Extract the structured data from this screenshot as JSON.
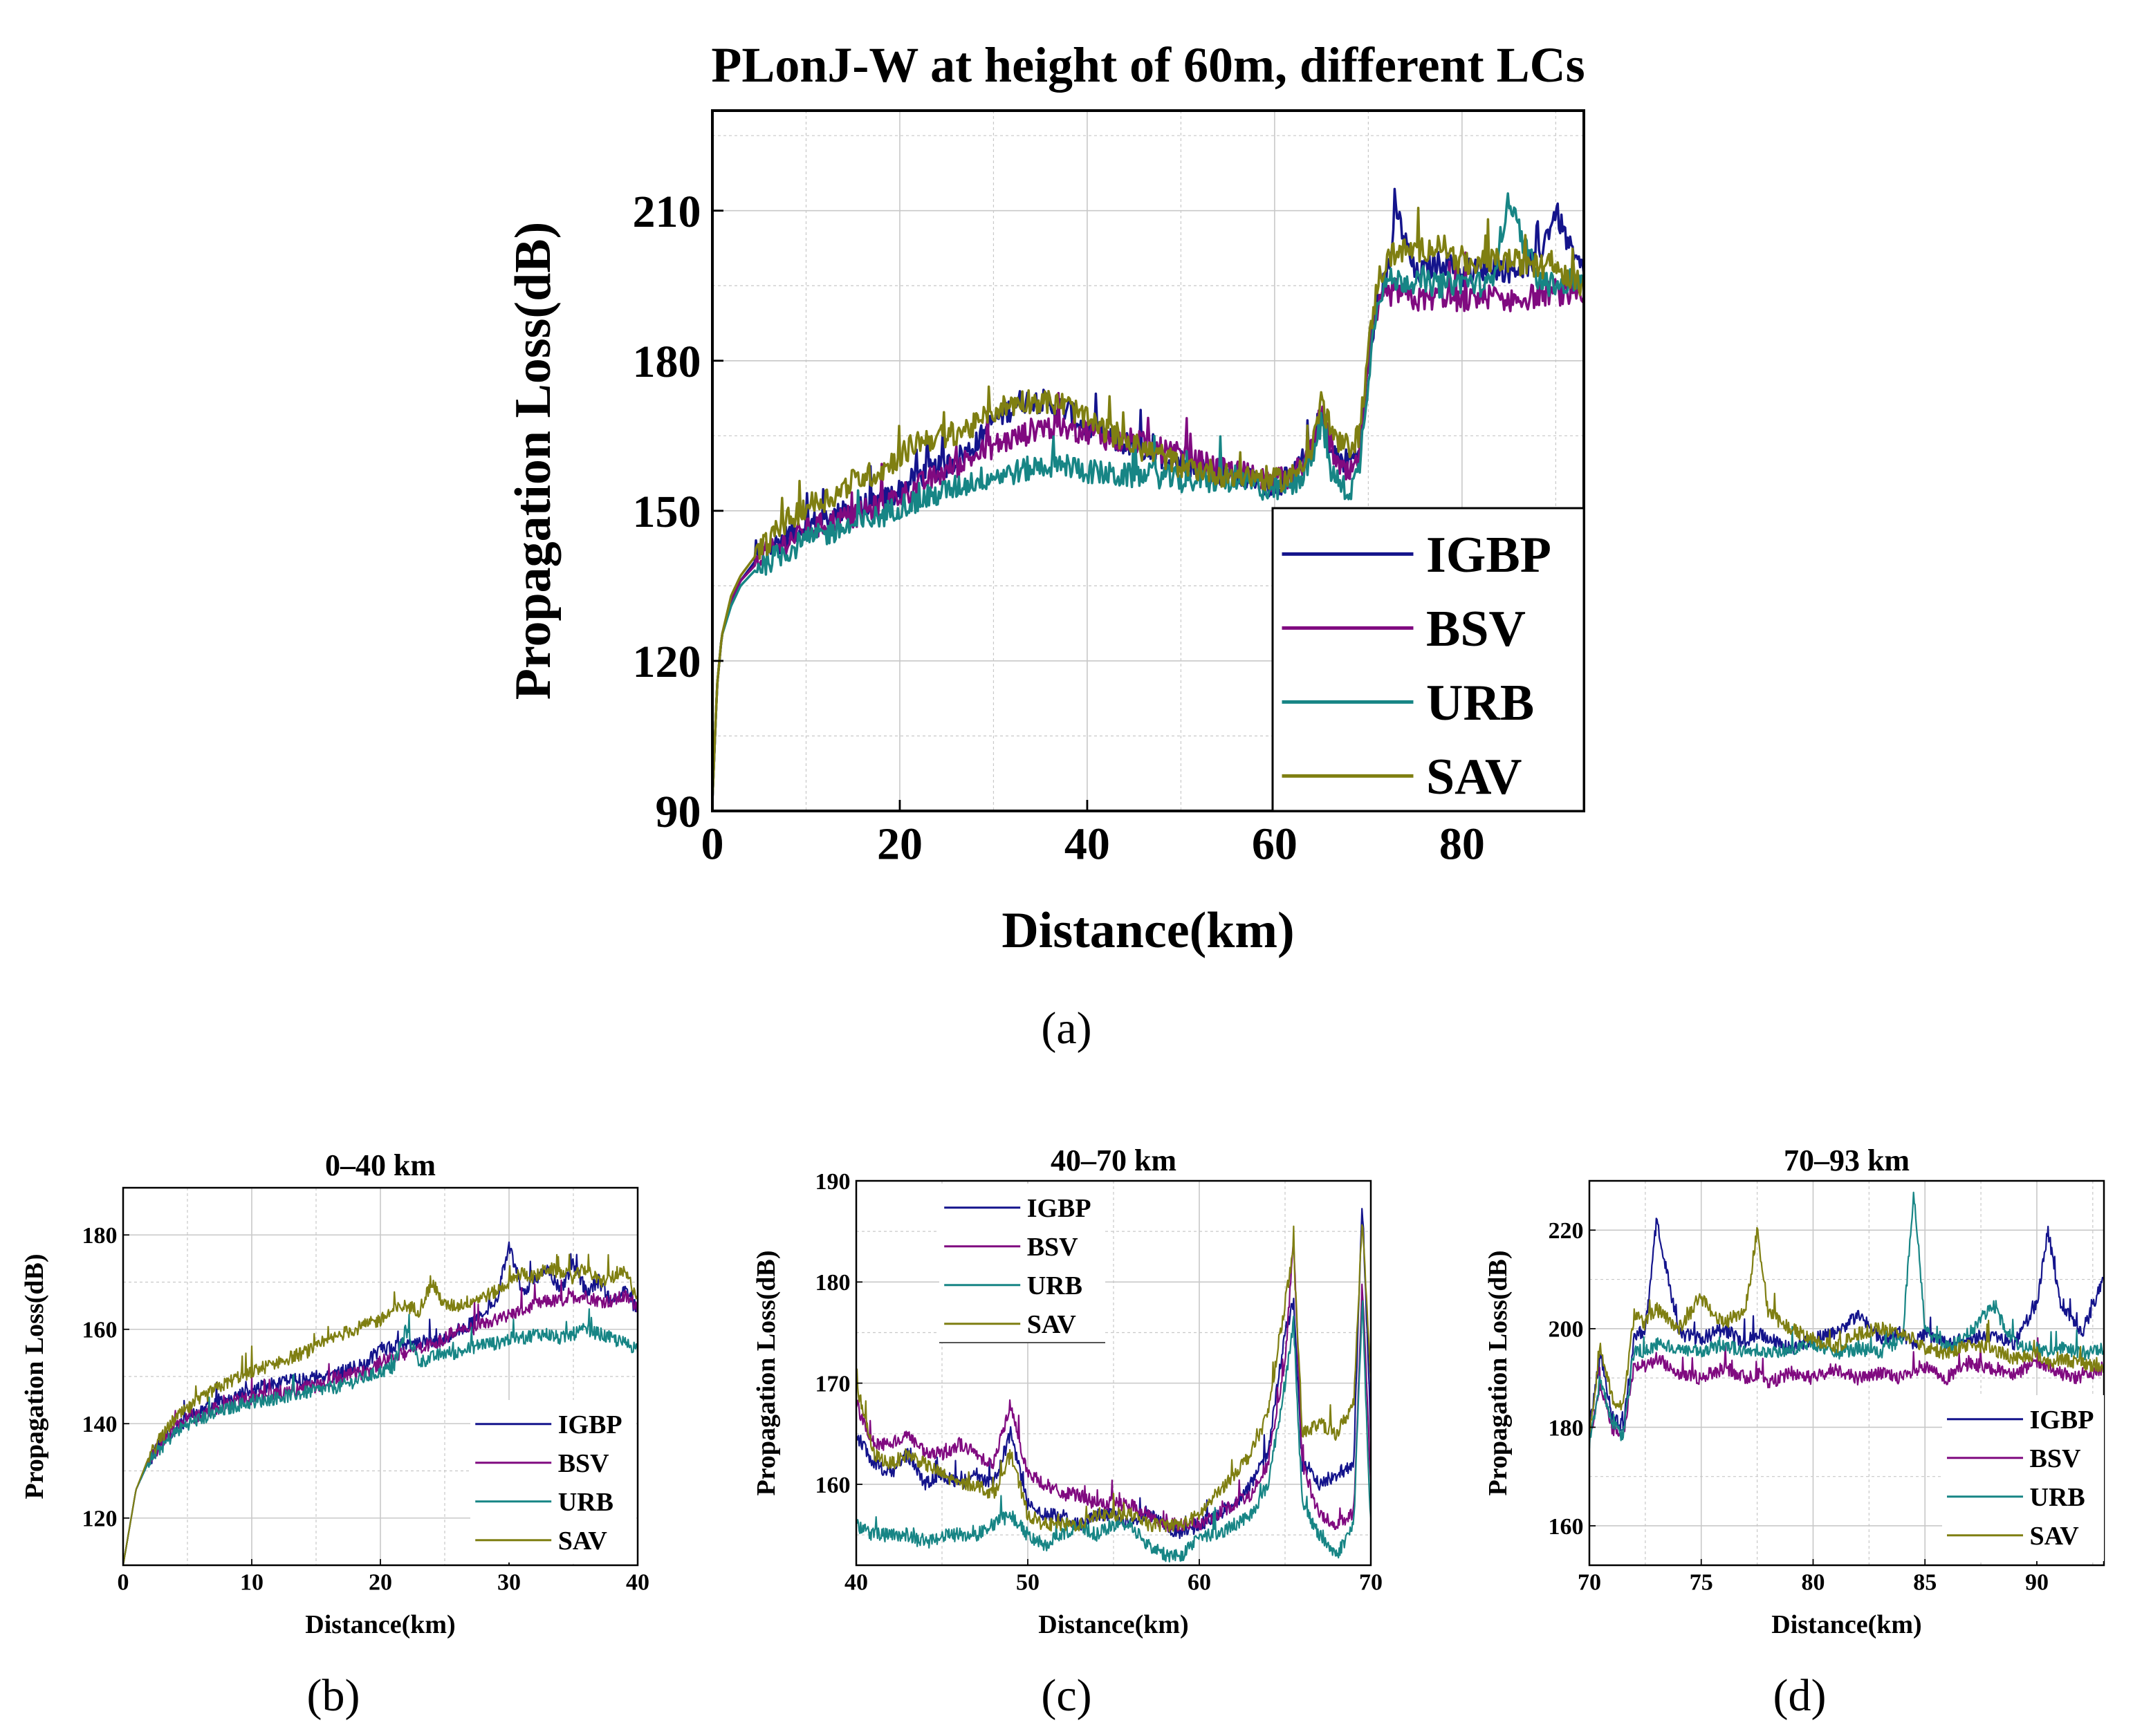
{
  "figure": {
    "captions": {
      "a": "(a)",
      "b": "(b)",
      "c": "(c)",
      "d": "(d)"
    }
  },
  "colors": {
    "IGBP": "#14148c",
    "BSV": "#800a80",
    "URB": "#178585",
    "SAV": "#7f7f12",
    "grid": "#c8c8c8",
    "axis": "#000000"
  },
  "chart_data": [
    {
      "id": "main",
      "type": "line",
      "title": "PLonJ-W at height of 60m, different LCs",
      "xlabel": "Distance(km)",
      "ylabel": "Propagation Loss(dB)",
      "xlim": [
        0,
        93
      ],
      "ylim": [
        90,
        230
      ],
      "xticks": [
        0,
        20,
        40,
        60,
        80
      ],
      "yticks": [
        90,
        120,
        150,
        180,
        210
      ],
      "legend": [
        "IGBP",
        "BSV",
        "URB",
        "SAV"
      ],
      "legend_position": "bottom-right",
      "x": [
        0,
        0.5,
        1,
        2,
        3,
        5,
        8,
        10,
        13,
        15,
        18,
        20,
        22,
        25,
        28,
        30,
        33,
        35,
        38,
        40,
        43,
        45,
        48,
        50,
        53,
        55,
        58,
        60,
        62,
        64,
        65,
        66,
        67,
        68,
        69,
        70,
        71,
        72,
        73,
        75,
        78,
        80,
        83,
        85,
        88,
        90,
        92,
        93
      ],
      "series": [
        {
          "name": "IGBP",
          "values": [
            92,
            115,
            125,
            132,
            136,
            141,
            145,
            147,
            149,
            150,
            152,
            154,
            157,
            159,
            163,
            168,
            172,
            172,
            170,
            166,
            164,
            163,
            161,
            160,
            158,
            157,
            156,
            155,
            157,
            163,
            170,
            162,
            160,
            160,
            162,
            180,
            192,
            197,
            210,
            197,
            200,
            197,
            199,
            198,
            200,
            210,
            200,
            198
          ]
        },
        {
          "name": "BSV",
          "values": [
            92,
            115,
            125,
            132,
            136,
            140,
            144,
            146,
            148,
            149,
            151,
            153,
            155,
            158,
            161,
            163,
            165,
            167,
            166,
            166,
            164,
            164,
            162,
            161,
            159,
            158,
            157,
            156,
            157,
            162,
            170,
            163,
            158,
            157,
            160,
            178,
            190,
            193,
            194,
            192,
            193,
            192,
            193,
            192,
            193,
            194,
            192,
            192
          ]
        },
        {
          "name": "URB",
          "values": [
            92,
            115,
            125,
            131,
            135,
            139,
            142,
            144,
            146,
            147,
            149,
            151,
            152,
            154,
            156,
            157,
            158,
            159,
            159,
            158,
            157,
            157,
            157,
            156,
            156,
            156,
            155,
            154,
            155,
            160,
            168,
            158,
            155,
            154,
            158,
            177,
            193,
            196,
            196,
            196,
            195,
            196,
            195,
            212,
            196,
            195,
            196,
            196
          ]
        },
        {
          "name": "SAV",
          "values": [
            92,
            115,
            125,
            133,
            137,
            142,
            148,
            151,
            153,
            156,
            158,
            161,
            164,
            165,
            167,
            170,
            172,
            172,
            171,
            168,
            165,
            163,
            161,
            159,
            158,
            157,
            157,
            156,
            157,
            163,
            172,
            166,
            163,
            163,
            165,
            182,
            196,
            200,
            202,
            202,
            203,
            199,
            200,
            200,
            199,
            199,
            196,
            195
          ]
        }
      ]
    },
    {
      "id": "b",
      "type": "line",
      "title": "0–40 km",
      "xlabel": "Distance(km)",
      "ylabel": "Propagation Loss(dB)",
      "xlim": [
        0,
        40
      ],
      "ylim": [
        110,
        190
      ],
      "xticks": [
        0,
        10,
        20,
        30,
        40
      ],
      "yticks": [
        120,
        140,
        160,
        180
      ],
      "legend": [
        "IGBP",
        "BSV",
        "URB",
        "SAV"
      ],
      "legend_position": "bottom-right",
      "x": [
        0,
        0.5,
        1,
        2,
        3,
        4,
        5,
        7,
        9,
        11,
        13,
        15,
        17,
        19,
        20,
        21,
        22,
        23,
        24,
        25,
        26,
        27,
        28,
        29,
        30,
        31,
        32,
        33,
        34,
        35,
        36,
        37,
        38,
        39,
        40
      ],
      "series": [
        {
          "name": "IGBP",
          "values": [
            110,
            118,
            126,
            132,
            136,
            139,
            141,
            144,
            146,
            148,
            149,
            150,
            151,
            153,
            156,
            156,
            157,
            157,
            157,
            158,
            160,
            161,
            163,
            166,
            178,
            168,
            170,
            173,
            168,
            174,
            168,
            170,
            166,
            168,
            164
          ]
        },
        {
          "name": "BSV",
          "values": [
            110,
            118,
            126,
            132,
            136,
            139,
            141,
            143,
            145,
            146,
            147,
            148,
            150,
            151,
            153,
            154,
            155,
            156,
            157,
            158,
            160,
            160,
            161,
            162,
            163,
            164,
            165,
            166,
            166,
            167,
            167,
            166,
            166,
            167,
            165
          ]
        },
        {
          "name": "URB",
          "values": [
            110,
            118,
            126,
            132,
            135,
            138,
            140,
            142,
            144,
            145,
            146,
            147,
            148,
            150,
            151,
            152,
            160,
            153,
            154,
            155,
            155,
            156,
            157,
            157,
            158,
            158,
            159,
            159,
            158,
            159,
            160,
            159,
            158,
            157,
            156
          ]
        },
        {
          "name": "SAV",
          "values": [
            110,
            118,
            126,
            133,
            137,
            141,
            143,
            147,
            150,
            152,
            154,
            156,
            159,
            161,
            162,
            164,
            165,
            164,
            170,
            165,
            165,
            166,
            167,
            168,
            170,
            172,
            171,
            173,
            172,
            171,
            173,
            170,
            171,
            172,
            167
          ]
        }
      ]
    },
    {
      "id": "c",
      "type": "line",
      "title": "40–70 km",
      "xlabel": "Distance(km)",
      "ylabel": "Propagation Loss(dB)",
      "xlim": [
        40,
        70
      ],
      "ylim": [
        152,
        190
      ],
      "xticks": [
        40,
        50,
        60,
        70
      ],
      "yticks": [
        160,
        170,
        180,
        190
      ],
      "legend": [
        "IGBP",
        "BSV",
        "URB",
        "SAV"
      ],
      "legend_position": "top-left",
      "x": [
        40,
        41,
        42,
        43,
        44,
        45,
        46,
        47,
        48,
        49,
        50,
        51,
        52,
        53,
        54,
        55,
        56,
        57,
        58,
        59,
        60,
        61,
        62,
        63,
        64,
        65,
        65.5,
        66,
        67,
        68,
        69,
        69.5,
        70
      ],
      "series": [
        {
          "name": "IGBP",
          "values": [
            165,
            162,
            161,
            163,
            160,
            161,
            160,
            161,
            160,
            165,
            158,
            157,
            157,
            156,
            157,
            157,
            156,
            157,
            156,
            155,
            156,
            157,
            158,
            160,
            163,
            175,
            178,
            162,
            160,
            161,
            162,
            188,
            165
          ]
        },
        {
          "name": "BSV",
          "values": [
            168,
            164,
            164,
            165,
            163,
            163,
            164,
            163,
            162,
            168,
            161,
            160,
            159,
            159,
            158,
            158,
            158,
            157,
            156,
            156,
            156,
            157,
            158,
            159,
            162,
            172,
            184,
            162,
            157,
            156,
            157,
            180,
            160
          ]
        },
        {
          "name": "URB",
          "values": [
            156,
            155,
            155,
            155,
            154,
            155,
            155,
            155,
            156,
            157,
            155,
            154,
            155,
            156,
            155,
            156,
            156,
            154,
            153,
            153,
            155,
            155,
            156,
            157,
            160,
            170,
            176,
            158,
            155,
            153,
            156,
            178,
            155
          ]
        },
        {
          "name": "SAV",
          "values": [
            170,
            163,
            162,
            163,
            162,
            161,
            160,
            160,
            159,
            163,
            157,
            156,
            156,
            156,
            157,
            157,
            157,
            156,
            156,
            156,
            157,
            159,
            161,
            163,
            167,
            178,
            183,
            165,
            166,
            165,
            168,
            186,
            170
          ]
        }
      ]
    },
    {
      "id": "d",
      "type": "line",
      "title": "70–93 km",
      "xlabel": "Distance(km)",
      "ylabel": "Propagation Loss(dB)",
      "xlim": [
        70,
        93
      ],
      "ylim": [
        152,
        230
      ],
      "xticks": [
        70,
        75,
        80,
        85,
        90
      ],
      "yticks": [
        160,
        180,
        200,
        220
      ],
      "legend": [
        "IGBP",
        "BSV",
        "URB",
        "SAV"
      ],
      "legend_position": "bottom-right",
      "x": [
        70,
        70.5,
        71,
        71.5,
        72,
        72.5,
        73,
        74,
        75,
        76,
        77,
        77.5,
        78,
        79,
        80,
        81,
        82,
        83,
        84,
        84.5,
        85,
        86,
        87,
        88,
        89,
        90,
        90.5,
        91,
        92,
        93
      ],
      "series": [
        {
          "name": "IGBP",
          "values": [
            180,
            195,
            182,
            180,
            198,
            200,
            222,
            199,
            198,
            200,
            197,
            199,
            198,
            196,
            198,
            199,
            203,
            198,
            199,
            197,
            199,
            197,
            198,
            199,
            197,
            205,
            220,
            206,
            199,
            210
          ]
        },
        {
          "name": "BSV",
          "values": [
            178,
            188,
            180,
            178,
            193,
            192,
            194,
            191,
            190,
            192,
            190,
            191,
            189,
            191,
            190,
            192,
            190,
            191,
            190,
            191,
            192,
            190,
            193,
            192,
            191,
            193,
            192,
            191,
            190,
            192
          ]
        },
        {
          "name": "URB",
          "values": [
            177,
            190,
            181,
            178,
            196,
            195,
            197,
            196,
            195,
            197,
            195,
            196,
            195,
            196,
            197,
            195,
            196,
            195,
            198,
            228,
            200,
            196,
            199,
            205,
            197,
            196,
            195,
            196,
            195,
            196
          ]
        },
        {
          "name": "SAV",
          "values": [
            179,
            196,
            186,
            184,
            203,
            201,
            204,
            200,
            206,
            201,
            204,
            220,
            203,
            200,
            198,
            196,
            199,
            200,
            199,
            198,
            196,
            195,
            197,
            196,
            194,
            195,
            193,
            194,
            193,
            192
          ]
        }
      ]
    }
  ]
}
